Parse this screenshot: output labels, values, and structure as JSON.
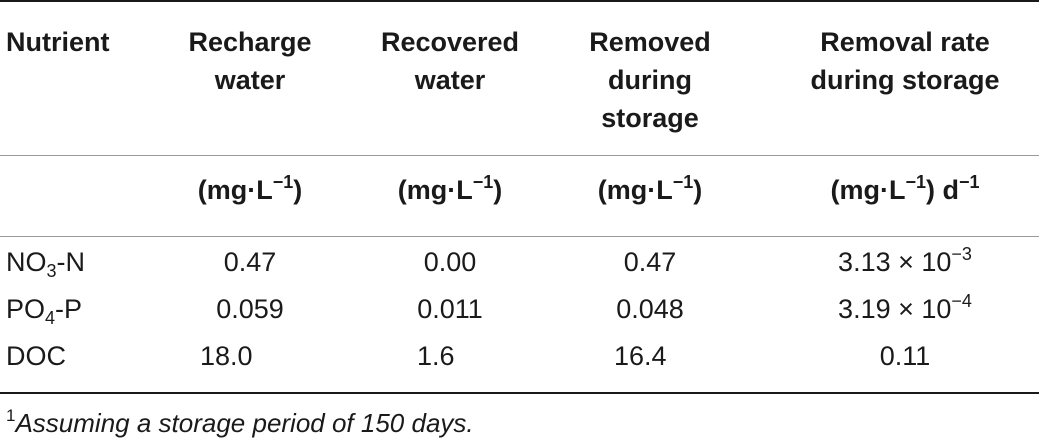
{
  "table": {
    "headers": {
      "col0": [
        "Nutrient"
      ],
      "col1": [
        "Recharge",
        "water"
      ],
      "col2": [
        "Recovered",
        "water"
      ],
      "col3": [
        "Removed",
        "during",
        "storage"
      ],
      "col4": [
        "Removal rate",
        "during storage"
      ]
    },
    "units": {
      "col1": {
        "base": "(mg·L",
        "sup": "−1",
        "tail": ")"
      },
      "col2": {
        "base": "(mg·L",
        "sup": "−1",
        "tail": ")"
      },
      "col3": {
        "base": "(mg·L",
        "sup": "−1",
        "tail": ")"
      },
      "col4": {
        "base": "(mg·L",
        "sup": "−1",
        "tail": ") d",
        "sup2": "−1"
      }
    },
    "rows": [
      {
        "nutrient": {
          "prefix": "NO",
          "sub": "3",
          "suffix": "-N"
        },
        "recharge": "0.47",
        "recovered": "0.00",
        "removed": "0.47",
        "rate": {
          "mantissa": "3.13 × 10",
          "exp": "−3"
        }
      },
      {
        "nutrient": {
          "prefix": "PO",
          "sub": "4",
          "suffix": "-P"
        },
        "recharge": "0.059",
        "recovered": "0.011",
        "removed": "0.048",
        "rate": {
          "mantissa": "3.19 × 10",
          "exp": "−4"
        }
      },
      {
        "nutrient": {
          "prefix": "DOC",
          "sub": "",
          "suffix": ""
        },
        "recharge": "18.0",
        "recovered": "1.6",
        "removed": "16.4",
        "rate": {
          "mantissa": "0.11",
          "exp": ""
        }
      }
    ]
  },
  "footnote": {
    "marker": "1",
    "text": "Assuming a storage period of 150 days."
  }
}
